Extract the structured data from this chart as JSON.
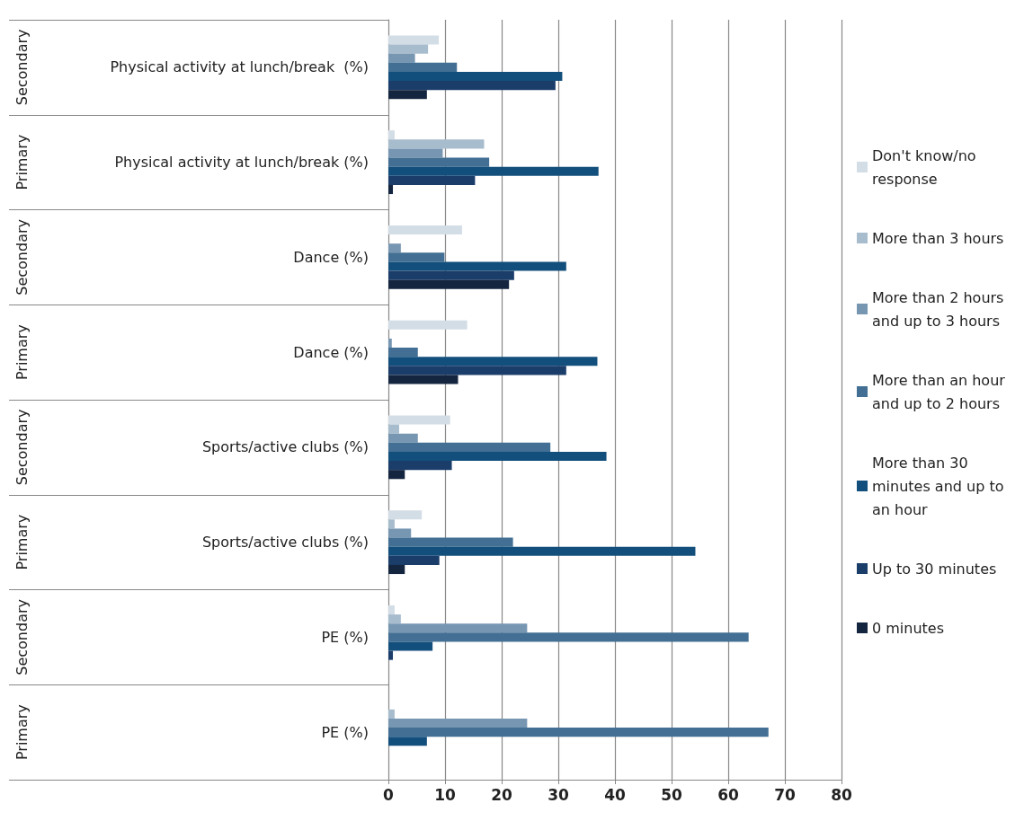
{
  "chart_data": {
    "type": "bar",
    "orientation": "horizontal",
    "categories": [
      "Physical activity at lunch/break  (%)",
      "Physical activity at lunch/break (%)",
      "Dance (%)",
      "Dance (%)",
      "Sports/active clubs (%)",
      "Sports/active clubs (%)",
      "PE (%)",
      "PE (%)"
    ],
    "annotations": [
      "Secondary",
      "Primary",
      "Secondary",
      "Primary",
      "Secondary",
      "Primary",
      "Secondary",
      "Primary"
    ],
    "series": [
      {
        "name": "Don't know/no response",
        "color": "#d3dde6",
        "values": [
          8.9,
          1.1,
          13.0,
          13.9,
          10.9,
          5.9,
          1.1,
          0
        ]
      },
      {
        "name": "More than 3 hours",
        "color": "#a7bccd",
        "values": [
          7.0,
          16.9,
          0,
          0,
          1.9,
          1.1,
          2.2,
          1.1
        ]
      },
      {
        "name": "More than 2 hours and up to 3 hours",
        "color": "#7796b2",
        "values": [
          4.7,
          9.6,
          2.2,
          0.6,
          5.2,
          4.0,
          24.5,
          24.5
        ]
      },
      {
        "name": "More than an hour and up to 2 hours",
        "color": "#426f93",
        "values": [
          12.1,
          17.8,
          9.9,
          5.2,
          28.6,
          22.0,
          63.6,
          67.1
        ]
      },
      {
        "name": "More than 30 minutes and up to an hour",
        "color": "#134f7c",
        "values": [
          30.7,
          37.1,
          31.4,
          36.9,
          38.5,
          54.2,
          7.8,
          6.8
        ]
      },
      {
        "name": "Up to 30 minutes",
        "color": "#1b3d6a",
        "values": [
          29.5,
          15.3,
          22.2,
          31.4,
          11.2,
          9.0,
          0.8,
          0
        ]
      },
      {
        "name": "0 minutes",
        "color": "#14253f",
        "values": [
          6.8,
          0.8,
          21.3,
          12.3,
          2.9,
          2.9,
          0,
          0
        ]
      }
    ],
    "xlim": [
      0,
      80
    ],
    "xticks": [
      0,
      10,
      20,
      30,
      40,
      50,
      60,
      70,
      80
    ],
    "grid": "x",
    "legend": "right"
  }
}
